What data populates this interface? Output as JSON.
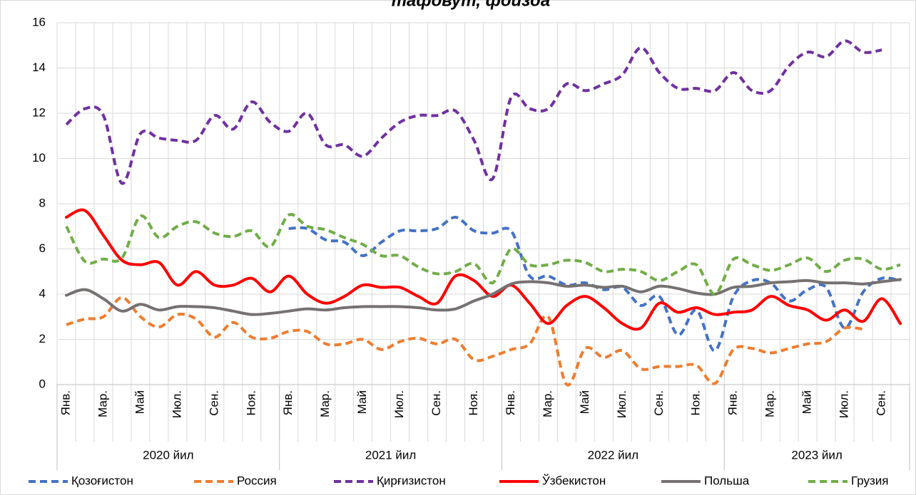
{
  "chart_data": {
    "type": "line",
    "title": "тафовут, фоизда",
    "categories": [
      "Янв.",
      null,
      "Мар.",
      null,
      "Май",
      null,
      "Июл.",
      null,
      "Сен.",
      null,
      "Ноя.",
      null,
      "Янв.",
      null,
      "Мар.",
      null,
      "Май",
      null,
      "Июл.",
      null,
      "Сен.",
      null,
      "Ноя.",
      null,
      "Янв.",
      null,
      "Мар.",
      null,
      "Май",
      null,
      "Июл.",
      null,
      "Сен.",
      null,
      "Ноя.",
      null,
      "Янв.",
      null,
      "Мар.",
      null,
      "Май",
      null,
      "Июл.",
      null,
      "Сен.",
      null
    ],
    "year_groups": [
      {
        "label": "2020 йил",
        "span": 12
      },
      {
        "label": "2021 йил",
        "span": 12
      },
      {
        "label": "2022 йил",
        "span": 12
      },
      {
        "label": "2023 йил",
        "span": 10
      }
    ],
    "ylim": [
      0,
      16
    ],
    "yticks": [
      0,
      2,
      4,
      6,
      8,
      10,
      12,
      14,
      16
    ],
    "grid": true,
    "legend": "bottom",
    "smooth": true,
    "series": [
      {
        "name": "Қозоғистон",
        "color": "#4472c4",
        "style": "dashed",
        "values": [
          null,
          null,
          null,
          null,
          null,
          null,
          null,
          null,
          null,
          null,
          null,
          null,
          6.9,
          6.9,
          6.4,
          6.3,
          5.7,
          6.3,
          6.8,
          6.8,
          6.9,
          7.4,
          6.8,
          6.7,
          6.8,
          4.8,
          4.8,
          4.4,
          4.5,
          4.2,
          4.3,
          3.5,
          3.9,
          2.2,
          3.3,
          1.5,
          3.9,
          4.6,
          4.5,
          3.7,
          4.2,
          4.3,
          2.5,
          4.1,
          4.7,
          4.6
        ]
      },
      {
        "name": "Россия",
        "color": "#ed7d31",
        "style": "dashed",
        "values": [
          2.65,
          2.9,
          3.0,
          3.85,
          3.0,
          2.55,
          3.1,
          2.9,
          2.1,
          2.75,
          2.1,
          2.05,
          2.35,
          2.35,
          1.8,
          1.8,
          2.0,
          1.55,
          1.9,
          2.05,
          1.8,
          2.0,
          1.1,
          1.25,
          1.55,
          1.8,
          3.0,
          0.0,
          1.6,
          1.2,
          1.5,
          0.7,
          0.8,
          0.8,
          0.85,
          0.05,
          1.55,
          1.6,
          1.4,
          1.6,
          1.8,
          1.9,
          2.5,
          2.45,
          null,
          null
        ]
      },
      {
        "name": "Қирғизистон",
        "color": "#7030a0",
        "style": "dashed",
        "values": [
          11.5,
          12.2,
          11.9,
          8.9,
          11.1,
          10.9,
          10.8,
          10.8,
          11.9,
          11.3,
          12.5,
          11.6,
          11.2,
          12.0,
          10.6,
          10.6,
          10.1,
          10.9,
          11.6,
          11.9,
          11.9,
          12.1,
          10.8,
          9.1,
          12.7,
          12.2,
          12.2,
          13.3,
          13.0,
          13.3,
          13.7,
          14.9,
          13.8,
          13.1,
          13.1,
          13.0,
          13.8,
          13.0,
          13.0,
          14.1,
          14.7,
          14.5,
          15.2,
          14.7,
          14.8,
          null
        ]
      },
      {
        "name": "Ўзбекистон",
        "color": "#ff0000",
        "style": "solid",
        "values": [
          7.4,
          7.7,
          6.6,
          5.5,
          5.3,
          5.4,
          4.4,
          5.0,
          4.4,
          4.4,
          4.7,
          4.1,
          4.8,
          4.0,
          3.6,
          3.9,
          4.4,
          4.3,
          4.3,
          3.9,
          3.6,
          4.8,
          4.6,
          3.9,
          4.4,
          3.6,
          2.7,
          3.5,
          3.9,
          3.4,
          2.7,
          2.5,
          3.6,
          3.2,
          3.4,
          3.1,
          3.2,
          3.3,
          3.9,
          3.5,
          3.3,
          2.85,
          3.3,
          2.8,
          3.8,
          2.7
        ]
      },
      {
        "name": "Польша",
        "color": "#767171",
        "style": "solid",
        "values": [
          3.95,
          4.2,
          3.8,
          3.25,
          3.55,
          3.3,
          3.45,
          3.45,
          3.4,
          3.25,
          3.1,
          3.15,
          3.25,
          3.35,
          3.3,
          3.4,
          3.45,
          3.45,
          3.45,
          3.4,
          3.3,
          3.35,
          3.7,
          4.0,
          4.45,
          4.55,
          4.5,
          4.35,
          4.4,
          4.3,
          4.35,
          4.1,
          4.35,
          4.25,
          4.05,
          4.0,
          4.3,
          4.35,
          4.5,
          4.55,
          4.6,
          4.5,
          4.5,
          4.45,
          4.55,
          4.65
        ]
      },
      {
        "name": "Грузия",
        "color": "#70ad47",
        "style": "dashed",
        "values": [
          7.0,
          5.45,
          5.55,
          5.6,
          7.45,
          6.5,
          7.0,
          7.2,
          6.7,
          6.55,
          6.8,
          6.1,
          7.5,
          7.0,
          6.85,
          6.5,
          6.2,
          5.7,
          5.7,
          5.2,
          4.9,
          5.0,
          5.35,
          4.5,
          6.0,
          5.3,
          5.3,
          5.5,
          5.4,
          5.0,
          5.1,
          5.0,
          4.6,
          5.0,
          5.3,
          4.0,
          5.55,
          5.3,
          5.05,
          5.3,
          5.6,
          5.0,
          5.5,
          5.55,
          5.1,
          5.3
        ]
      }
    ]
  }
}
